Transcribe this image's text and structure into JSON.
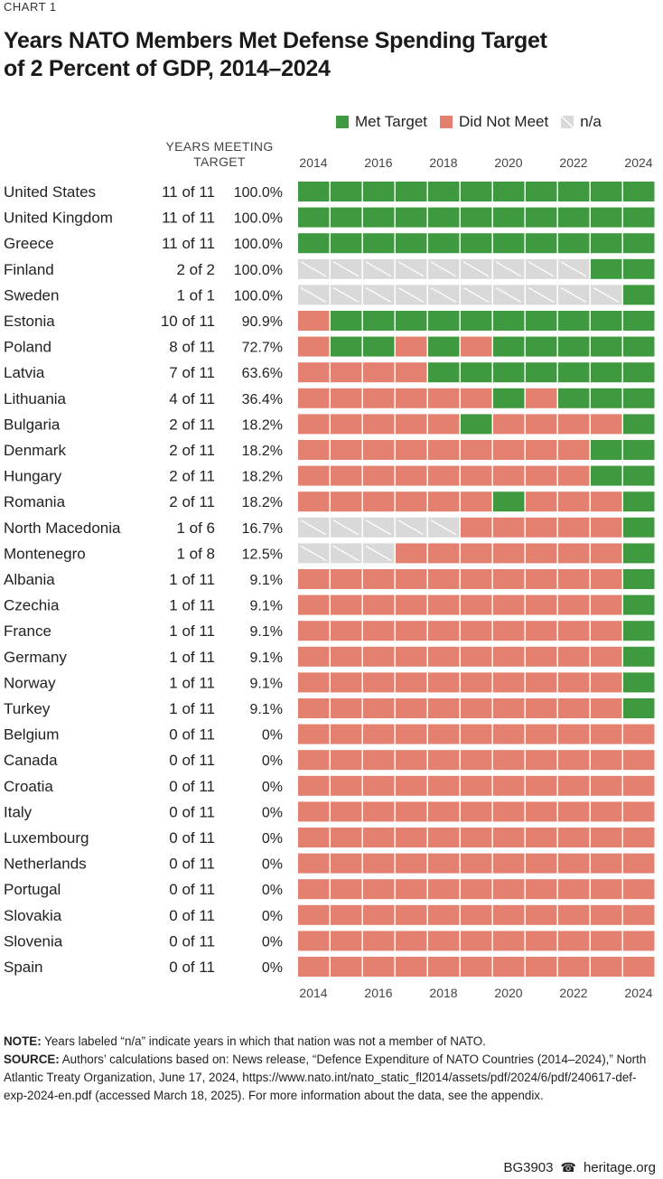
{
  "kicker": "CHART 1",
  "title_line1": "Years NATO Members Met Defense Spending Target",
  "title_line2": "of 2 Percent of GDP, 2014–2024",
  "legend": [
    {
      "key": "met",
      "label": "Met Target"
    },
    {
      "key": "not",
      "label": "Did Not Meet"
    },
    {
      "key": "na",
      "label": "n/a"
    }
  ],
  "column_header_line1": "YEARS MEETING",
  "column_header_line2": "TARGET",
  "year_tick_labels": [
    "2014",
    "2016",
    "2018",
    "2020",
    "2022",
    "2024"
  ],
  "colors": {
    "met": "#3f9a3f",
    "not": "#e4806f",
    "na": "#d9d9d9",
    "hatch": "#ffffff"
  },
  "chart_data": {
    "type": "heatmap",
    "years": [
      2014,
      2015,
      2016,
      2017,
      2018,
      2019,
      2020,
      2021,
      2022,
      2023,
      2024
    ],
    "legend": {
      "M": "Met Target",
      "N": "Did Not Meet",
      "X": "n/a"
    },
    "rows": [
      {
        "country": "United States",
        "years_meeting": "11 of 11",
        "pct": "100.0%",
        "status": "MMMMMMMMMMM"
      },
      {
        "country": "United Kingdom",
        "years_meeting": "11 of 11",
        "pct": "100.0%",
        "status": "MMMMMMMMMMM"
      },
      {
        "country": "Greece",
        "years_meeting": "11 of 11",
        "pct": "100.0%",
        "status": "MMMMMMMMMMM"
      },
      {
        "country": "Finland",
        "years_meeting": "2 of 2",
        "pct": "100.0%",
        "status": "XXXXXXXXXMM"
      },
      {
        "country": "Sweden",
        "years_meeting": "1 of 1",
        "pct": "100.0%",
        "status": "XXXXXXXXXXM"
      },
      {
        "country": "Estonia",
        "years_meeting": "10 of 11",
        "pct": "90.9%",
        "status": "NMMMMMMMMMM"
      },
      {
        "country": "Poland",
        "years_meeting": "8 of 11",
        "pct": "72.7%",
        "status": "NMMNMNMMMMM"
      },
      {
        "country": "Latvia",
        "years_meeting": "7 of 11",
        "pct": "63.6%",
        "status": "NNNNMMMMMMM"
      },
      {
        "country": "Lithuania",
        "years_meeting": "4 of 11",
        "pct": "36.4%",
        "status": "NNNNNNMNMMM"
      },
      {
        "country": "Bulgaria",
        "years_meeting": "2 of 11",
        "pct": "18.2%",
        "status": "NNNNNMNNNNM"
      },
      {
        "country": "Denmark",
        "years_meeting": "2 of 11",
        "pct": "18.2%",
        "status": "NNNNNNNNNMM"
      },
      {
        "country": "Hungary",
        "years_meeting": "2 of 11",
        "pct": "18.2%",
        "status": "NNNNNNNNNMM"
      },
      {
        "country": "Romania",
        "years_meeting": "2 of 11",
        "pct": "18.2%",
        "status": "NNNNNNMNNNM"
      },
      {
        "country": "North Macedonia",
        "years_meeting": "1 of 6",
        "pct": "16.7%",
        "status": "XXXXXNNNNNM"
      },
      {
        "country": "Montenegro",
        "years_meeting": "1 of 8",
        "pct": "12.5%",
        "status": "XXXNNNNNNNM"
      },
      {
        "country": "Albania",
        "years_meeting": "1 of 11",
        "pct": "9.1%",
        "status": "NNNNNNNNNNM"
      },
      {
        "country": "Czechia",
        "years_meeting": "1 of 11",
        "pct": "9.1%",
        "status": "NNNNNNNNNNM"
      },
      {
        "country": "France",
        "years_meeting": "1 of 11",
        "pct": "9.1%",
        "status": "NNNNNNNNNNM"
      },
      {
        "country": "Germany",
        "years_meeting": "1 of 11",
        "pct": "9.1%",
        "status": "NNNNNNNNNNM"
      },
      {
        "country": "Norway",
        "years_meeting": "1 of 11",
        "pct": "9.1%",
        "status": "NNNNNNNNNNM"
      },
      {
        "country": "Turkey",
        "years_meeting": "1 of 11",
        "pct": "9.1%",
        "status": "NNNNNNNNNNM"
      },
      {
        "country": "Belgium",
        "years_meeting": "0 of 11",
        "pct": "0%",
        "status": "NNNNNNNNNNN"
      },
      {
        "country": "Canada",
        "years_meeting": "0 of 11",
        "pct": "0%",
        "status": "NNNNNNNNNNN"
      },
      {
        "country": "Croatia",
        "years_meeting": "0 of 11",
        "pct": "0%",
        "status": "NNNNNNNNNNN"
      },
      {
        "country": "Italy",
        "years_meeting": "0 of 11",
        "pct": "0%",
        "status": "NNNNNNNNNNN"
      },
      {
        "country": "Luxembourg",
        "years_meeting": "0 of 11",
        "pct": "0%",
        "status": "NNNNNNNNNNN"
      },
      {
        "country": "Netherlands",
        "years_meeting": "0 of 11",
        "pct": "0%",
        "status": "NNNNNNNNNNN"
      },
      {
        "country": "Portugal",
        "years_meeting": "0 of 11",
        "pct": "0%",
        "status": "NNNNNNNNNNN"
      },
      {
        "country": "Slovakia",
        "years_meeting": "0 of 11",
        "pct": "0%",
        "status": "NNNNNNNNNNN"
      },
      {
        "country": "Slovenia",
        "years_meeting": "0 of 11",
        "pct": "0%",
        "status": "NNNNNNNNNNN"
      },
      {
        "country": "Spain",
        "years_meeting": "0 of 11",
        "pct": "0%",
        "status": "NNNNNNNNNNN"
      }
    ]
  },
  "note_label": "NOTE:",
  "note_text": " Years labeled “n/a” indicate years in which that nation was not a member of NATO.",
  "source_label": "SOURCE:",
  "source_text": " Authors’ calculations based on: News release, “Defence Expenditure of NATO Countries (2014–2024),” North Atlantic Treaty Organization, June 17, 2024, https://www.nato.int/nato_static_fl2014/assets/pdf/2024/6/pdf/240617-def-exp-2024-en.pdf (accessed March 18, 2025). For more information about the data, see the appendix.",
  "footer_code": "BG3903",
  "footer_site": "heritage.org"
}
